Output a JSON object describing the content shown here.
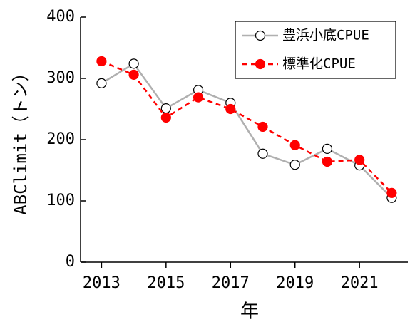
{
  "chart_data": {
    "type": "line",
    "xlabel": "年",
    "ylabel": "ABClimit（トン）",
    "x": [
      2013,
      2014,
      2015,
      2016,
      2017,
      2018,
      2019,
      2020,
      2021,
      2022
    ],
    "series": [
      {
        "name": "豊浜小底CPUE",
        "color": "#b0b0b0",
        "marker_fill": "#ffffff",
        "linestyle": "solid",
        "values": [
          292,
          324,
          251,
          281,
          260,
          177,
          159,
          185,
          158,
          105
        ]
      },
      {
        "name": "標準化CPUE",
        "color": "#ff0000",
        "marker_fill": "#ff0000",
        "linestyle": "dashed",
        "values": [
          328,
          306,
          236,
          269,
          250,
          221,
          191,
          164,
          167,
          113
        ]
      }
    ],
    "xlim": [
      2012.35,
      2022.5
    ],
    "xticks": [
      2013,
      2015,
      2017,
      2019,
      2021
    ],
    "ylim": [
      0,
      400
    ],
    "yticks": [
      0,
      100,
      200,
      300,
      400
    ],
    "legend": "upper right"
  }
}
